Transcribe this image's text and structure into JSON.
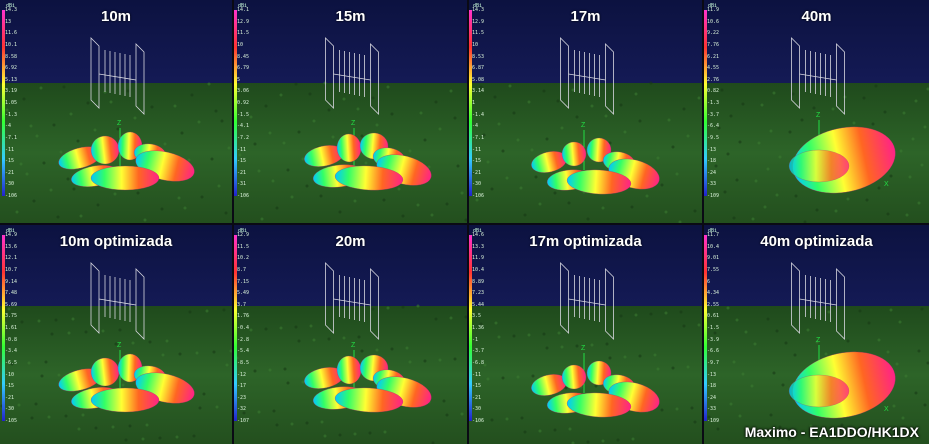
{
  "panels": [
    {
      "title": "10m",
      "unit": "dBi",
      "ticks": [
        "14.3",
        "13",
        "11.6",
        "10.1",
        "8.58",
        "6.92",
        "5.13",
        "3.19",
        "1.05",
        "-1.3",
        "-4",
        "-7.1",
        "-11",
        "-15",
        "-21",
        "-30",
        "-106"
      ]
    },
    {
      "title": "15m",
      "unit": "dBi",
      "ticks": [
        "14.1",
        "12.9",
        "11.5",
        "10",
        "8.45",
        "6.79",
        "5",
        "3.06",
        "0.92",
        "-1.5",
        "-4.1",
        "-7.2",
        "-11",
        "-15",
        "-21",
        "-31",
        "-106"
      ]
    },
    {
      "title": "17m",
      "unit": "dBi",
      "ticks": [
        "14.3",
        "12.9",
        "11.5",
        "10",
        "8.53",
        "6.87",
        "5.08",
        "3.14",
        "1",
        "-1.4",
        "-4",
        "-7.1",
        "-11",
        "-15",
        "-21",
        "-30",
        "-106"
      ]
    },
    {
      "title": "40m",
      "unit": "dBi",
      "ticks": [
        "11.9",
        "10.6",
        "9.22",
        "7.76",
        "6.21",
        "4.55",
        "2.76",
        "0.82",
        "-1.3",
        "-3.7",
        "-6.4",
        "-9.5",
        "-13",
        "-18",
        "-24",
        "-33",
        "-109"
      ]
    },
    {
      "title": "10m optimizada",
      "unit": "dBi",
      "ticks": [
        "14.9",
        "13.6",
        "12.1",
        "10.7",
        "9.14",
        "7.48",
        "5.69",
        "3.75",
        "1.61",
        "-0.8",
        "-3.4",
        "-6.5",
        "-10",
        "-15",
        "-21",
        "-30",
        "-105"
      ]
    },
    {
      "title": "20m",
      "unit": "dBi",
      "ticks": [
        "12.9",
        "11.5",
        "10.2",
        "8.7",
        "7.15",
        "5.49",
        "3.7",
        "1.76",
        "-0.4",
        "-2.8",
        "-5.4",
        "-8.5",
        "-12",
        "-17",
        "-23",
        "-32",
        "-107"
      ]
    },
    {
      "title": "17m optimizada",
      "unit": "dBi",
      "ticks": [
        "14.6",
        "13.3",
        "11.9",
        "10.4",
        "8.89",
        "7.23",
        "5.44",
        "3.5",
        "1.36",
        "-1",
        "-3.7",
        "-6.8",
        "-11",
        "-15",
        "-21",
        "-30",
        "-106"
      ]
    },
    {
      "title": "40m optimizada",
      "unit": "dBi",
      "ticks": [
        "11.7",
        "10.4",
        "9.01",
        "7.55",
        "6",
        "4.34",
        "2.55",
        "0.61",
        "-1.5",
        "-3.9",
        "-6.6",
        "-9.7",
        "-13",
        "-18",
        "-24",
        "-33",
        "-109"
      ]
    }
  ],
  "axis_labels": {
    "z": "Z",
    "x": "X"
  },
  "colors": {
    "sky": "#0f1446",
    "ground": "#2a5a22",
    "axis": "#22dd44"
  },
  "credit": "Maximo - EA1DDO/HK1DX"
}
